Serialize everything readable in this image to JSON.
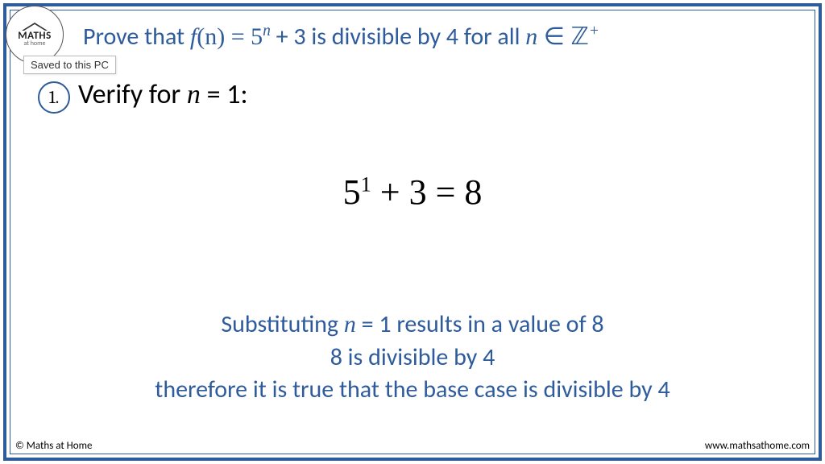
{
  "colors": {
    "accent": "#2e5b9c",
    "text": "#000000",
    "background": "#ffffff",
    "tooltip_border": "#bbbbbb"
  },
  "logo": {
    "line1": "MATHS",
    "line2": "at home"
  },
  "tooltip": {
    "text": "Saved to this PC"
  },
  "title": {
    "prefix": "Prove that ",
    "fn": "f",
    "open": "(n) = 5",
    "exp": "n",
    "mid": " + 3 is divisible by 4 for all ",
    "var": "n",
    "in": " ∈ ",
    "set": "ℤ",
    "setexp": "+"
  },
  "step": {
    "number": "1.",
    "label_prefix": "Verify for ",
    "var": "n",
    "eq": " = 1:"
  },
  "equation": {
    "base": "5",
    "exp": "1",
    "rest": " + 3 = 8"
  },
  "explain": {
    "l1a": "Substituting ",
    "l1var": "n",
    "l1b": " = 1 results in a value of 8",
    "l2": "8 is divisible by 4",
    "l3": "therefore it is true that the base case is divisible by 4"
  },
  "footer": {
    "left": "© Maths at Home",
    "right": "www.mathsathome.com"
  }
}
